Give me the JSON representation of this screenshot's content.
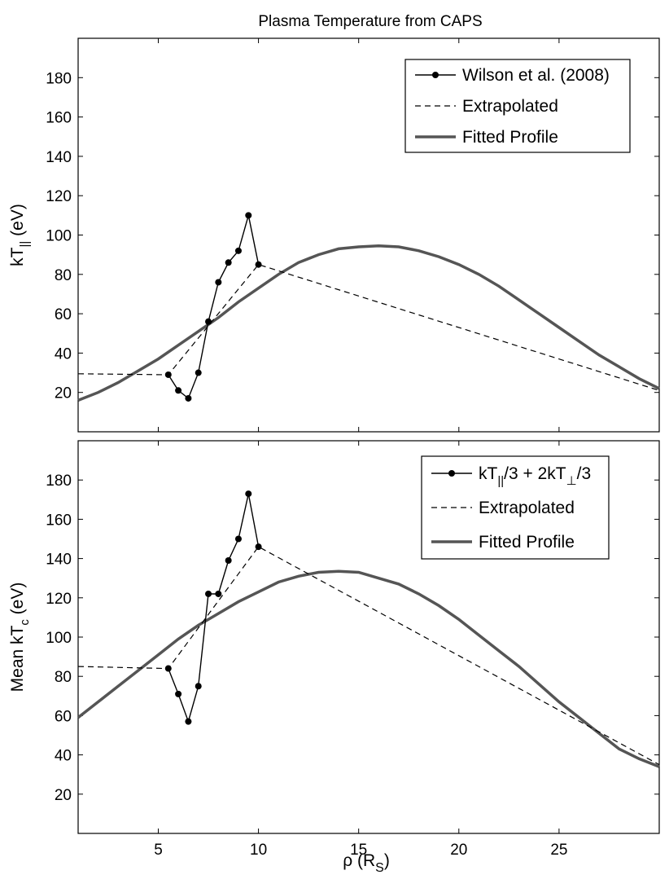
{
  "figure": {
    "title": "Plasma Temperature from CAPS",
    "xlabel": "ρ (R",
    "xlabel_sub": "S",
    "xlabel_end": ")"
  },
  "chart_data": [
    {
      "type": "line",
      "ylabel": "kT",
      "ylabel_sub": "||",
      "ylabel_end": " (eV)",
      "xlim": [
        1,
        30
      ],
      "ylim": [
        0,
        200
      ],
      "xticks": [
        5,
        10,
        15,
        20,
        25
      ],
      "yticks": [
        20,
        40,
        60,
        80,
        100,
        120,
        140,
        160,
        180
      ],
      "legend_position": "top-right",
      "series": [
        {
          "name": "Wilson et al. (2008)",
          "style": "solid-markers",
          "x": [
            5.5,
            6.0,
            6.5,
            7.0,
            7.5,
            8.0,
            8.5,
            9.0,
            9.5,
            10.0
          ],
          "y": [
            29,
            21,
            17,
            30,
            56,
            76,
            86,
            92,
            110,
            85
          ]
        },
        {
          "name": "Extrapolated",
          "style": "dashed",
          "x": [
            1,
            5.5,
            10,
            30
          ],
          "y": [
            29.5,
            29,
            85,
            21
          ]
        },
        {
          "name": "Fitted Profile",
          "style": "thick",
          "x": [
            1,
            2,
            3,
            4,
            5,
            6,
            7,
            8,
            9,
            10,
            11,
            12,
            13,
            14,
            15,
            16,
            17,
            18,
            19,
            20,
            21,
            22,
            23,
            24,
            25,
            26,
            27,
            28,
            29,
            30
          ],
          "y": [
            16,
            20,
            25,
            31,
            37,
            44,
            51,
            58,
            66,
            73,
            80,
            86,
            90,
            93,
            94,
            94.5,
            94,
            92,
            89,
            85,
            80,
            74,
            67,
            60,
            53,
            46,
            39,
            33,
            27,
            22
          ]
        }
      ]
    },
    {
      "type": "line",
      "ylabel": "Mean kT",
      "ylabel_sub": "c",
      "ylabel_end": " (eV)",
      "xlim": [
        1,
        30
      ],
      "ylim": [
        0,
        200
      ],
      "xticks": [
        5,
        10,
        15,
        20,
        25
      ],
      "yticks": [
        20,
        40,
        60,
        80,
        100,
        120,
        140,
        160,
        180
      ],
      "legend_position": "top-right",
      "series": [
        {
          "name": "kT||/3 + 2kT⊥/3",
          "legend_parts": {
            "a": "kT",
            "a_sub": "||",
            "b": "/3 + 2kT",
            "b_sub": "⊥",
            "c": "/3"
          },
          "style": "solid-markers",
          "x": [
            5.5,
            6.0,
            6.5,
            7.0,
            7.5,
            8.0,
            8.5,
            9.0,
            9.5,
            10.0
          ],
          "y": [
            84,
            71,
            57,
            75,
            122,
            122,
            139,
            150,
            173,
            146
          ]
        },
        {
          "name": "Extrapolated",
          "style": "dashed",
          "x": [
            1,
            5.5,
            10,
            30
          ],
          "y": [
            85,
            84,
            146,
            35
          ]
        },
        {
          "name": "Fitted Profile",
          "style": "thick",
          "x": [
            1,
            2,
            3,
            4,
            5,
            6,
            7,
            8,
            9,
            10,
            11,
            12,
            13,
            14,
            15,
            16,
            17,
            18,
            19,
            20,
            21,
            22,
            23,
            24,
            25,
            26,
            27,
            28,
            29,
            30
          ],
          "y": [
            59,
            67,
            75,
            83,
            91,
            99,
            106,
            112,
            118,
            123,
            128,
            131,
            133,
            133.5,
            133,
            130,
            127,
            122,
            116,
            109,
            101,
            93,
            85,
            76,
            67,
            59,
            51,
            43,
            38,
            34
          ]
        }
      ]
    }
  ]
}
